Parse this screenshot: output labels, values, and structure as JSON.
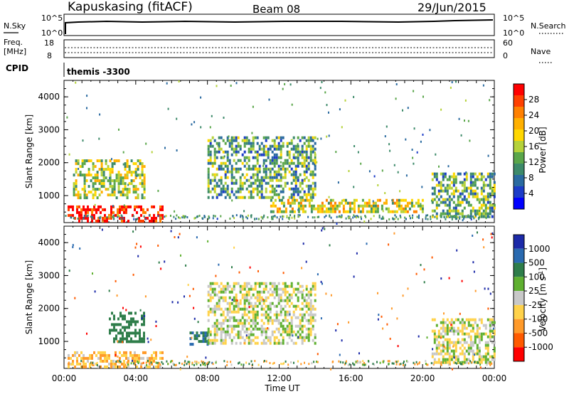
{
  "header": {
    "station": "Kapuskasing (fitACF)",
    "beam": "Beam 08",
    "date": "29/Jun/2015"
  },
  "strips": {
    "nsky_label": "N.Sky",
    "nsky_ticks": [
      "10^5",
      "10^0"
    ],
    "nsearch_label": "N.Search",
    "nsearch_ticks": [
      "10^5",
      "10^0"
    ],
    "freq_label_1": "Freq.",
    "freq_label_2": "[MHz]",
    "freq_ticks": [
      "18",
      "8"
    ],
    "nave_label": "Nave",
    "nave_ticks": [
      "60",
      "0"
    ],
    "cpid_label": "CPID",
    "cpid_value": "themis -3300"
  },
  "panels": {
    "ylabel": "Slant Range [km]",
    "power_bar": {
      "label": "Power [dB]",
      "ticks": [
        "28",
        "24",
        "20",
        "16",
        "12",
        "8",
        "4"
      ],
      "colors": [
        "#ff0000",
        "#ff4000",
        "#ff8000",
        "#ffb000",
        "#ffd700",
        "#b5d23a",
        "#5aa64a",
        "#3d8a6a",
        "#2a6aa0",
        "#1c3cc8",
        "#0000ff"
      ]
    },
    "velocity_bar": {
      "label": "Velocity [m s",
      "label_sup": "-1",
      "label_end": "]",
      "ticks": [
        "1000",
        "500",
        "100",
        "25",
        "-25",
        "-100",
        "-500",
        "-1000"
      ],
      "colors": [
        "#1c2aa8",
        "#2a6ab0",
        "#2e7d4a",
        "#5fb030",
        "#c8c8c8",
        "#ffd24a",
        "#ff9a2a",
        "#ff5a00",
        "#ff0000"
      ]
    },
    "time_axis_label": "Time UT"
  },
  "chart_data": [
    {
      "type": "heatmap",
      "title": "Power",
      "xlabel": "Time UT",
      "ylabel": "Slant Range [km]",
      "xlim": [
        "00:00",
        "24:00"
      ],
      "ylim": [
        180,
        4500
      ],
      "x_ticks": [
        "00:00",
        "04:00",
        "08:00",
        "12:00",
        "16:00",
        "20:00",
        "00:00"
      ],
      "y_ticks": [
        1000,
        2000,
        3000,
        4000
      ],
      "colorbar": {
        "label": "Power [dB]",
        "ticks": [
          4,
          8,
          12,
          16,
          20,
          24,
          28
        ]
      },
      "regions": [
        {
          "t_start": 0.2,
          "t_end": 5.5,
          "range_start": 200,
          "range_end": 700,
          "power_db": 28
        },
        {
          "t_start": 0.5,
          "t_end": 4.5,
          "range_start": 900,
          "range_end": 2100,
          "power_db": 14
        },
        {
          "t_start": 8.0,
          "t_end": 14.0,
          "range_start": 900,
          "range_end": 2800,
          "power_db": 10
        },
        {
          "t_start": 11.5,
          "t_end": 20.0,
          "range_start": 500,
          "range_end": 900,
          "power_db": 16
        },
        {
          "t_start": 20.5,
          "t_end": 24.0,
          "range_start": 400,
          "range_end": 1700,
          "power_db": 10
        }
      ]
    },
    {
      "type": "heatmap",
      "title": "Velocity",
      "xlabel": "Time UT",
      "ylabel": "Slant Range [km]",
      "xlim": [
        "00:00",
        "24:00"
      ],
      "ylim": [
        180,
        4500
      ],
      "x_ticks": [
        "00:00",
        "04:00",
        "08:00",
        "12:00",
        "16:00",
        "20:00",
        "00:00"
      ],
      "y_ticks": [
        1000,
        2000,
        3000,
        4000
      ],
      "colorbar": {
        "label": "Velocity [m s-1]",
        "ticks": [
          1000,
          500,
          100,
          25,
          -25,
          -100,
          -500,
          -1000
        ]
      },
      "regions": [
        {
          "t_start": 0.2,
          "t_end": 5.5,
          "range_start": 200,
          "range_end": 700,
          "velocity": -80
        },
        {
          "t_start": 2.5,
          "t_end": 4.5,
          "range_start": 1000,
          "range_end": 1900,
          "velocity": 200
        },
        {
          "t_start": 7.0,
          "t_end": 8.0,
          "range_start": 950,
          "range_end": 1300,
          "velocity": 300
        },
        {
          "t_start": 8.0,
          "t_end": 14.0,
          "range_start": 900,
          "range_end": 2800,
          "velocity": 0
        },
        {
          "t_start": 20.5,
          "t_end": 24.0,
          "range_start": 400,
          "range_end": 1700,
          "velocity": 0
        }
      ]
    }
  ]
}
